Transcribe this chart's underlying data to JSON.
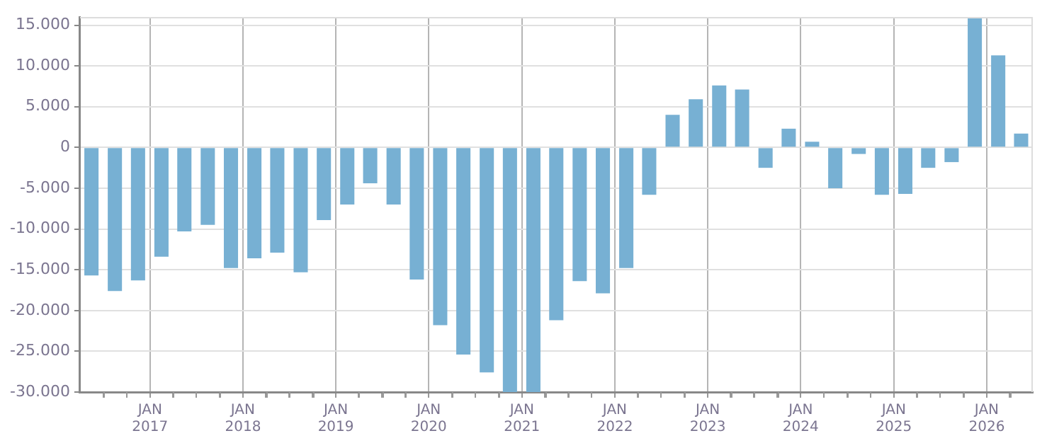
{
  "chart_data": {
    "type": "bar",
    "color": "#77b0d3",
    "x": [
      "2016-05-16",
      "2016-08-16",
      "2016-11-15",
      "2017-02-15",
      "2017-05-16",
      "2017-08-16",
      "2017-11-15",
      "2018-02-15",
      "2018-05-16",
      "2018-08-16",
      "2018-11-15",
      "2019-02-15",
      "2019-05-16",
      "2019-08-16",
      "2019-11-15",
      "2020-02-15",
      "2020-05-16",
      "2020-08-16",
      "2020-11-15",
      "2021-02-15",
      "2021-05-16",
      "2021-08-16",
      "2021-11-15",
      "2022-02-15",
      "2022-05-16",
      "2022-08-16",
      "2022-11-15",
      "2023-02-15",
      "2023-05-16",
      "2023-08-16",
      "2023-11-15",
      "2024-02-15",
      "2024-05-16",
      "2024-08-16",
      "2024-11-15",
      "2025-02-15",
      "2025-05-16",
      "2025-08-16",
      "2025-11-15",
      "2026-02-15",
      "2026-05-16"
    ],
    "values": [
      -15700,
      -17600,
      -16300,
      -13400,
      -10300,
      -9500,
      -14800,
      -13600,
      -12900,
      -15300,
      -8900,
      -7000,
      -4400,
      -7000,
      -16200,
      -21800,
      -25400,
      -27600,
      -30000,
      -30000,
      -21200,
      -16400,
      -17900,
      -14800,
      -5800,
      4000,
      5900,
      7600,
      7100,
      -2500,
      2300,
      700,
      -5000,
      -800,
      -5800,
      -5700,
      -2500,
      -1800,
      15900,
      11300,
      1700
    ],
    "xlim": [
      "2016-04-01",
      "2026-07-01"
    ],
    "xticks": [
      {
        "value": "2016-07-01",
        "label": null
      },
      {
        "value": "2016-10-01",
        "label": null
      },
      {
        "value": "2017-01-01",
        "label": "JAN 2017"
      },
      {
        "value": "2017-04-01",
        "label": null
      },
      {
        "value": "2017-07-01",
        "label": null
      },
      {
        "value": "2017-10-01",
        "label": null
      },
      {
        "value": "2018-01-01",
        "label": "JAN 2018"
      },
      {
        "value": "2018-04-01",
        "label": null
      },
      {
        "value": "2018-07-01",
        "label": null
      },
      {
        "value": "2018-10-01",
        "label": null
      },
      {
        "value": "2019-01-01",
        "label": "JAN 2019"
      },
      {
        "value": "2019-04-01",
        "label": null
      },
      {
        "value": "2019-07-01",
        "label": null
      },
      {
        "value": "2019-10-01",
        "label": null
      },
      {
        "value": "2020-01-01",
        "label": "JAN 2020"
      },
      {
        "value": "2020-04-01",
        "label": null
      },
      {
        "value": "2020-07-01",
        "label": null
      },
      {
        "value": "2020-10-01",
        "label": null
      },
      {
        "value": "2021-01-01",
        "label": "JAN 2021"
      },
      {
        "value": "2021-04-01",
        "label": null
      },
      {
        "value": "2021-07-01",
        "label": null
      },
      {
        "value": "2021-10-01",
        "label": null
      },
      {
        "value": "2022-01-01",
        "label": "JAN 2022"
      },
      {
        "value": "2022-04-01",
        "label": null
      },
      {
        "value": "2022-07-01",
        "label": null
      },
      {
        "value": "2022-10-01",
        "label": null
      },
      {
        "value": "2023-01-01",
        "label": "JAN 2023"
      },
      {
        "value": "2023-04-01",
        "label": null
      },
      {
        "value": "2023-07-01",
        "label": null
      },
      {
        "value": "2023-10-01",
        "label": null
      },
      {
        "value": "2024-01-01",
        "label": "JAN 2024"
      },
      {
        "value": "2024-04-01",
        "label": null
      },
      {
        "value": "2024-07-01",
        "label": null
      },
      {
        "value": "2024-10-01",
        "label": null
      },
      {
        "value": "2025-01-01",
        "label": "JAN 2025"
      },
      {
        "value": "2025-04-01",
        "label": null
      },
      {
        "value": "2025-07-01",
        "label": null
      },
      {
        "value": "2025-10-01",
        "label": null
      },
      {
        "value": "2026-01-01",
        "label": "JAN 2026"
      },
      {
        "value": "2026-04-01",
        "label": null
      }
    ],
    "ylim": [
      -30000,
      16000
    ],
    "yticks": [
      {
        "value": -30000,
        "label": "-30.000"
      },
      {
        "value": -25000,
        "label": "-25.000"
      },
      {
        "value": -20000,
        "label": "-20.000"
      },
      {
        "value": -15000,
        "label": "-15.000"
      },
      {
        "value": -10000,
        "label": "-10.000"
      },
      {
        "value": -5000,
        "label": "-5.000"
      },
      {
        "value": 0,
        "label": "0"
      },
      {
        "value": 5000,
        "label": "5.000"
      },
      {
        "value": 10000,
        "label": "10.000"
      },
      {
        "value": 15000,
        "label": "15.000"
      }
    ],
    "grid": true
  }
}
